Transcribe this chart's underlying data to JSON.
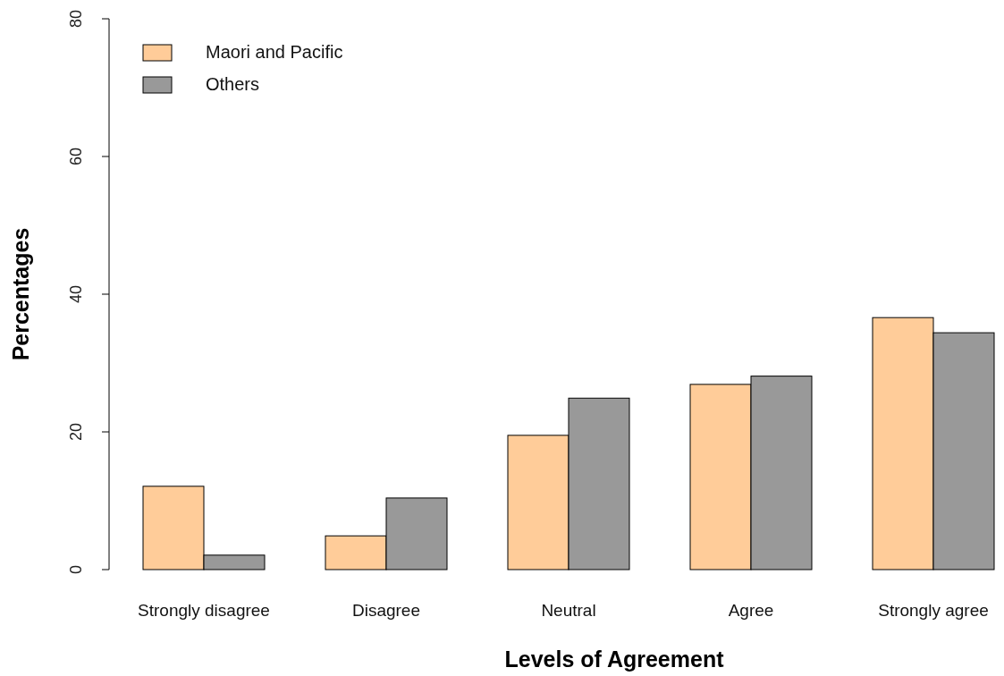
{
  "chart_data": {
    "type": "bar",
    "xlabel": "Levels of Agreement",
    "ylabel": "Percentages",
    "categories": [
      "Strongly disagree",
      "Disagree",
      "Neutral",
      "Agree",
      "Strongly agree"
    ],
    "series": [
      {
        "name": "Maori and Pacific",
        "color": "#ffcc99",
        "values": [
          12.1,
          4.9,
          19.5,
          26.9,
          36.6
        ]
      },
      {
        "name": "Others",
        "color": "#999999",
        "values": [
          2.1,
          10.4,
          24.9,
          28.1,
          34.4
        ]
      }
    ],
    "ylim": [
      0,
      80
    ],
    "yticks": [
      0,
      20,
      40,
      60,
      80
    ],
    "grid": false,
    "legend": "top left"
  }
}
